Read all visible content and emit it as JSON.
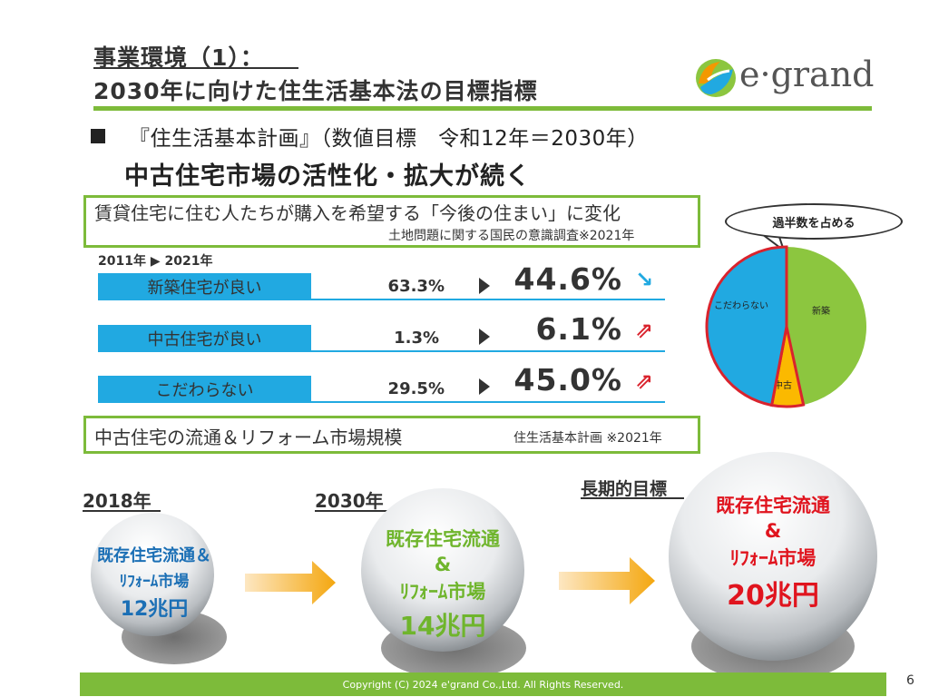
{
  "header": {
    "title_line1": "事業環境（1）：",
    "title_line2": "2030年に向けた住生活基本法の目標指標",
    "logo_text": "e·grand"
  },
  "plan": {
    "bullet_text": "『住生活基本計画』（数値目標　令和12年＝2030年）",
    "subheading": "中古住宅市場の活性化・拡大が続く"
  },
  "survey": {
    "title": "賃貸住宅に住む人たちが購入を希望する「今後の住まい」に変化",
    "source": "土地問題に関する国民の意識調査※2021年",
    "years_label": "2011年 ▶ 2021年",
    "rows": [
      {
        "label": "新築住宅が良い",
        "value_2011": "63.3%",
        "value_2021": "44.6%",
        "trend": "↘",
        "trend_color": "#21a9e1"
      },
      {
        "label": "中古住宅が良い",
        "value_2011": "1.3%",
        "value_2021": "6.1%",
        "trend": "⇗",
        "trend_color": "#d9232d"
      },
      {
        "label": "こだわらない",
        "value_2011": "29.5%",
        "value_2021": "45.0%",
        "trend": "⇗",
        "trend_color": "#d9232d"
      }
    ]
  },
  "pie": {
    "callout": "過半数を占める",
    "slices": [
      {
        "label": "新築",
        "value": 44.6,
        "color": "#8cc63f"
      },
      {
        "label": "中古",
        "value": 6.1,
        "color": "#fbb900"
      },
      {
        "label": "こだわらない",
        "value": 45.0,
        "color": "#21a9e1"
      }
    ],
    "highlight_color": "#d9232d"
  },
  "market": {
    "title": "中古住宅の流通＆リフォーム市場規模",
    "source": "住生活基本計画 ※2021年",
    "stages": [
      {
        "year": "2018年",
        "line1": "既存住宅流通＆",
        "line2": "ﾘﾌｫｰﾑ市場",
        "amount": "12兆円",
        "color": "#1b6fb5"
      },
      {
        "year": "2030年",
        "line1": "既存住宅流通",
        "line_amp": "&",
        "line2": "ﾘﾌｫｰﾑ市場",
        "amount": "14兆円",
        "color": "#6fb52c"
      },
      {
        "year": "長期的目標",
        "line1": "既存住宅流通",
        "line_amp": "&",
        "line2": "ﾘﾌｫｰﾑ市場",
        "amount": "20兆円",
        "color": "#e0141e"
      }
    ]
  },
  "footer": {
    "copyright": "Copyright (C) 2024 e'grand Co.,Ltd. All Rights Reserved.",
    "page_number": "6"
  }
}
